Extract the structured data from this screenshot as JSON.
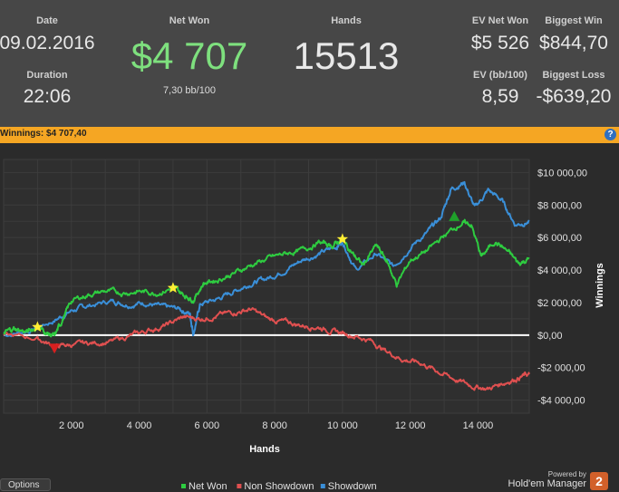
{
  "stats": {
    "date_label": "Date",
    "date_value": "09.02.2016",
    "duration_label": "Duration",
    "duration_value": "22:06",
    "net_won_label": "Net Won",
    "net_won_value": "$4 707",
    "net_won_bb": "7,30 bb/100",
    "hands_label": "Hands",
    "hands_value": "15513",
    "ev_net_won_label": "EV Net Won",
    "ev_net_won_value": "$5 526",
    "ev_bb_label": "EV (bb/100)",
    "ev_bb_value": "8,59",
    "biggest_win_label": "Biggest Win",
    "biggest_win_value": "$844,70",
    "biggest_loss_label": "Biggest Loss",
    "biggest_loss_value": "-$639,20"
  },
  "winnings_bar": {
    "label": "Winnings:",
    "value": "$4 707,40",
    "help_glyph": "?"
  },
  "footer": {
    "options_label": "Options",
    "powered_by": "Powered by",
    "brand": "Hold'em Manager",
    "brand_version": "2"
  },
  "colors": {
    "net_won": "#2ecc40",
    "non_showdown": "#e05050",
    "showdown": "#3a8fd8",
    "zero_line": "#ffffff",
    "star": "#ffee33",
    "max_marker": "#1fa02a",
    "min_marker": "#d81f1f"
  },
  "chart_data": {
    "type": "line",
    "xlabel": "Hands",
    "ylabel": "Winnings",
    "xlim": [
      0,
      15513
    ],
    "ylim": [
      -4800,
      10800
    ],
    "x_ticks": [
      2000,
      4000,
      6000,
      8000,
      10000,
      12000,
      14000
    ],
    "x_tick_labels": [
      "2 000",
      "4 000",
      "6 000",
      "8 000",
      "10 000",
      "12 000",
      "14 000"
    ],
    "y_ticks": [
      10000,
      8000,
      6000,
      4000,
      2000,
      0,
      -2000,
      -4000
    ],
    "y_tick_labels": [
      "$10 000,00",
      "$8 000,00",
      "$6 000,00",
      "$4 000,00",
      "$2 000,00",
      "$0,00",
      "-$2 000,00",
      "-$4 000,00"
    ],
    "legend_position": "bottom",
    "series": [
      {
        "name": "Net Won",
        "color": "#2ecc40",
        "points": [
          [
            0,
            100
          ],
          [
            300,
            400
          ],
          [
            700,
            200
          ],
          [
            1000,
            500
          ],
          [
            1300,
            100
          ],
          [
            1500,
            -100
          ],
          [
            1700,
            800
          ],
          [
            2000,
            2100
          ],
          [
            2500,
            2500
          ],
          [
            3000,
            2700
          ],
          [
            3500,
            2600
          ],
          [
            4000,
            2700
          ],
          [
            4500,
            2600
          ],
          [
            5000,
            2900
          ],
          [
            5300,
            2500
          ],
          [
            5600,
            2200
          ],
          [
            5900,
            3200
          ],
          [
            6300,
            3400
          ],
          [
            6800,
            3800
          ],
          [
            7300,
            4300
          ],
          [
            7800,
            4700
          ],
          [
            8300,
            5000
          ],
          [
            8800,
            5200
          ],
          [
            9300,
            5700
          ],
          [
            9700,
            5500
          ],
          [
            10000,
            5900
          ],
          [
            10300,
            5000
          ],
          [
            10600,
            4300
          ],
          [
            11000,
            5500
          ],
          [
            11300,
            4600
          ],
          [
            11600,
            3100
          ],
          [
            12000,
            4600
          ],
          [
            12500,
            5200
          ],
          [
            13000,
            6100
          ],
          [
            13500,
            6900
          ],
          [
            13800,
            6800
          ],
          [
            14100,
            4800
          ],
          [
            14500,
            5800
          ],
          [
            14900,
            5100
          ],
          [
            15200,
            4400
          ],
          [
            15513,
            4700
          ]
        ]
      },
      {
        "name": "Non Showdown",
        "color": "#e05050",
        "points": [
          [
            0,
            0
          ],
          [
            1000,
            -200
          ],
          [
            1500,
            -700
          ],
          [
            2000,
            -600
          ],
          [
            2600,
            -500
          ],
          [
            3200,
            -400
          ],
          [
            3800,
            0
          ],
          [
            4300,
            300
          ],
          [
            4800,
            600
          ],
          [
            5300,
            1100
          ],
          [
            5800,
            1000
          ],
          [
            6300,
            1200
          ],
          [
            6800,
            1400
          ],
          [
            7300,
            1600
          ],
          [
            7800,
            1000
          ],
          [
            8300,
            800
          ],
          [
            8800,
            600
          ],
          [
            9300,
            500
          ],
          [
            9800,
            200
          ],
          [
            10300,
            0
          ],
          [
            10800,
            -300
          ],
          [
            11300,
            -1000
          ],
          [
            11800,
            -1500
          ],
          [
            12300,
            -1700
          ],
          [
            12800,
            -2200
          ],
          [
            13300,
            -2700
          ],
          [
            13800,
            -3100
          ],
          [
            14300,
            -3300
          ],
          [
            14800,
            -2900
          ],
          [
            15200,
            -2600
          ],
          [
            15513,
            -2400
          ]
        ]
      },
      {
        "name": "Showdown",
        "color": "#3a8fd8",
        "points": [
          [
            0,
            0
          ],
          [
            800,
            300
          ],
          [
            1500,
            900
          ],
          [
            2000,
            1500
          ],
          [
            2500,
            1800
          ],
          [
            3200,
            2100
          ],
          [
            3700,
            1900
          ],
          [
            4200,
            2000
          ],
          [
            4700,
            1700
          ],
          [
            5200,
            1600
          ],
          [
            5500,
            1300
          ],
          [
            5600,
            100
          ],
          [
            5800,
            1900
          ],
          [
            6300,
            2200
          ],
          [
            6800,
            2700
          ],
          [
            7300,
            3200
          ],
          [
            7800,
            3500
          ],
          [
            8300,
            4000
          ],
          [
            8800,
            4600
          ],
          [
            9300,
            5000
          ],
          [
            9800,
            5400
          ],
          [
            10000,
            5800
          ],
          [
            10400,
            4000
          ],
          [
            11000,
            5000
          ],
          [
            11500,
            4200
          ],
          [
            12000,
            5400
          ],
          [
            12500,
            6300
          ],
          [
            12900,
            7200
          ],
          [
            13200,
            9000
          ],
          [
            13600,
            9400
          ],
          [
            13900,
            7800
          ],
          [
            14300,
            8900
          ],
          [
            14700,
            8300
          ],
          [
            15100,
            6800
          ],
          [
            15513,
            7000
          ]
        ]
      }
    ],
    "markers": [
      {
        "type": "star",
        "x": 1000,
        "y": 500
      },
      {
        "type": "star",
        "x": 5000,
        "y": 2900
      },
      {
        "type": "star",
        "x": 10000,
        "y": 5900
      },
      {
        "type": "max",
        "x": 13300,
        "y": 7300
      },
      {
        "type": "min",
        "x": 1500,
        "y": -800
      }
    ]
  }
}
